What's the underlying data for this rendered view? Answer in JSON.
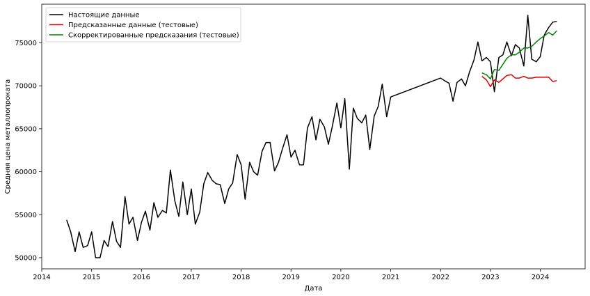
{
  "chart_data": {
    "type": "line",
    "xlabel": "Дата",
    "ylabel": "Средняя цена металлопроката",
    "xlim": [
      2014.0,
      2024.9
    ],
    "ylim": [
      48700,
      79500
    ],
    "x_ticks": [
      {
        "value": 2014,
        "label": "2014"
      },
      {
        "value": 2015,
        "label": "2015"
      },
      {
        "value": 2016,
        "label": "2016"
      },
      {
        "value": 2017,
        "label": "2017"
      },
      {
        "value": 2018,
        "label": "2018"
      },
      {
        "value": 2019,
        "label": "2019"
      },
      {
        "value": 2020,
        "label": "2020"
      },
      {
        "value": 2021,
        "label": "2021"
      },
      {
        "value": 2022,
        "label": "2022"
      },
      {
        "value": 2023,
        "label": "2023"
      },
      {
        "value": 2024,
        "label": "2024"
      }
    ],
    "y_ticks": [
      {
        "value": 50000,
        "label": "50000"
      },
      {
        "value": 55000,
        "label": "55000"
      },
      {
        "value": 60000,
        "label": "60000"
      },
      {
        "value": 65000,
        "label": "65000"
      },
      {
        "value": 70000,
        "label": "70000"
      },
      {
        "value": 75000,
        "label": "75000"
      }
    ],
    "grid": false,
    "legend_position": "top-left",
    "series": [
      {
        "name": "Настоящие данные",
        "color": "#000000",
        "points": [
          [
            2014.5,
            54400
          ],
          [
            2014.58,
            53000
          ],
          [
            2014.67,
            50700
          ],
          [
            2014.75,
            53000
          ],
          [
            2014.83,
            51200
          ],
          [
            2014.92,
            51400
          ],
          [
            2015.0,
            53000
          ],
          [
            2015.08,
            50000
          ],
          [
            2015.17,
            50000
          ],
          [
            2015.25,
            52000
          ],
          [
            2015.33,
            51300
          ],
          [
            2015.42,
            54200
          ],
          [
            2015.5,
            51900
          ],
          [
            2015.58,
            51200
          ],
          [
            2015.67,
            57100
          ],
          [
            2015.75,
            53900
          ],
          [
            2015.83,
            54700
          ],
          [
            2015.92,
            52000
          ],
          [
            2016.0,
            54100
          ],
          [
            2016.08,
            55400
          ],
          [
            2016.17,
            53200
          ],
          [
            2016.25,
            56400
          ],
          [
            2016.33,
            54700
          ],
          [
            2016.42,
            55500
          ],
          [
            2016.5,
            55200
          ],
          [
            2016.58,
            60200
          ],
          [
            2016.67,
            56600
          ],
          [
            2016.75,
            54800
          ],
          [
            2016.83,
            58800
          ],
          [
            2016.92,
            55000
          ],
          [
            2017.0,
            58000
          ],
          [
            2017.08,
            53900
          ],
          [
            2017.17,
            55300
          ],
          [
            2017.25,
            58600
          ],
          [
            2017.33,
            59900
          ],
          [
            2017.42,
            59000
          ],
          [
            2017.5,
            58600
          ],
          [
            2017.58,
            58500
          ],
          [
            2017.67,
            56300
          ],
          [
            2017.75,
            58000
          ],
          [
            2017.83,
            58700
          ],
          [
            2017.92,
            62000
          ],
          [
            2018.0,
            60800
          ],
          [
            2018.08,
            56800
          ],
          [
            2018.17,
            61100
          ],
          [
            2018.25,
            60000
          ],
          [
            2018.33,
            59600
          ],
          [
            2018.42,
            62400
          ],
          [
            2018.5,
            63400
          ],
          [
            2018.58,
            63400
          ],
          [
            2018.67,
            60100
          ],
          [
            2018.75,
            61100
          ],
          [
            2018.83,
            62700
          ],
          [
            2018.92,
            64300
          ],
          [
            2019.0,
            61700
          ],
          [
            2019.08,
            62500
          ],
          [
            2019.17,
            60800
          ],
          [
            2019.25,
            60800
          ],
          [
            2019.33,
            65100
          ],
          [
            2019.42,
            66400
          ],
          [
            2019.5,
            63700
          ],
          [
            2019.58,
            66100
          ],
          [
            2019.67,
            65200
          ],
          [
            2019.75,
            63200
          ],
          [
            2019.83,
            65300
          ],
          [
            2019.92,
            68000
          ],
          [
            2020.0,
            65100
          ],
          [
            2020.08,
            68500
          ],
          [
            2020.17,
            60300
          ],
          [
            2020.25,
            67400
          ],
          [
            2020.33,
            66200
          ],
          [
            2020.42,
            65700
          ],
          [
            2020.5,
            66600
          ],
          [
            2020.58,
            62600
          ],
          [
            2020.67,
            66500
          ],
          [
            2020.75,
            67600
          ],
          [
            2020.83,
            70200
          ],
          [
            2020.92,
            66400
          ],
          [
            2021.0,
            68700
          ],
          [
            2022.0,
            70900
          ],
          [
            2022.08,
            70600
          ],
          [
            2022.17,
            70300
          ],
          [
            2022.25,
            68200
          ],
          [
            2022.33,
            70400
          ],
          [
            2022.42,
            70800
          ],
          [
            2022.5,
            70000
          ],
          [
            2022.58,
            71600
          ],
          [
            2022.67,
            73000
          ],
          [
            2022.75,
            75100
          ],
          [
            2022.83,
            72900
          ],
          [
            2022.92,
            73300
          ],
          [
            2023.0,
            72800
          ],
          [
            2023.08,
            69300
          ],
          [
            2023.17,
            73300
          ],
          [
            2023.25,
            73600
          ],
          [
            2023.33,
            75100
          ],
          [
            2023.42,
            73500
          ],
          [
            2023.5,
            74800
          ],
          [
            2023.58,
            74400
          ],
          [
            2023.67,
            72300
          ],
          [
            2023.75,
            78200
          ],
          [
            2023.83,
            73100
          ],
          [
            2023.92,
            72800
          ],
          [
            2024.0,
            73400
          ],
          [
            2024.08,
            75900
          ],
          [
            2024.17,
            76800
          ],
          [
            2024.25,
            77400
          ],
          [
            2024.33,
            77500
          ]
        ]
      },
      {
        "name": "Предсказанные данные (тестовые)",
        "color": "#dd0000",
        "points": [
          [
            2022.83,
            71100
          ],
          [
            2022.92,
            70700
          ],
          [
            2023.0,
            69900
          ],
          [
            2023.08,
            70700
          ],
          [
            2023.17,
            70400
          ],
          [
            2023.25,
            70800
          ],
          [
            2023.33,
            71200
          ],
          [
            2023.42,
            71300
          ],
          [
            2023.5,
            70900
          ],
          [
            2023.58,
            70900
          ],
          [
            2023.67,
            71100
          ],
          [
            2023.75,
            70900
          ],
          [
            2023.83,
            70900
          ],
          [
            2023.92,
            71000
          ],
          [
            2024.0,
            71000
          ],
          [
            2024.08,
            71000
          ],
          [
            2024.17,
            71000
          ],
          [
            2024.25,
            70500
          ],
          [
            2024.33,
            70600
          ]
        ]
      },
      {
        "name": "Скорректированные предсказания (тестовые)",
        "color": "#008000",
        "points": [
          [
            2022.83,
            71500
          ],
          [
            2022.92,
            71300
          ],
          [
            2023.0,
            70800
          ],
          [
            2023.08,
            71900
          ],
          [
            2023.17,
            71800
          ],
          [
            2023.25,
            72500
          ],
          [
            2023.33,
            73200
          ],
          [
            2023.42,
            73600
          ],
          [
            2023.5,
            73600
          ],
          [
            2023.58,
            73900
          ],
          [
            2023.67,
            74400
          ],
          [
            2023.75,
            74400
          ],
          [
            2023.83,
            74600
          ],
          [
            2023.92,
            75100
          ],
          [
            2024.0,
            75500
          ],
          [
            2024.08,
            75800
          ],
          [
            2024.17,
            76200
          ],
          [
            2024.25,
            75900
          ],
          [
            2024.33,
            76400
          ]
        ]
      }
    ]
  }
}
